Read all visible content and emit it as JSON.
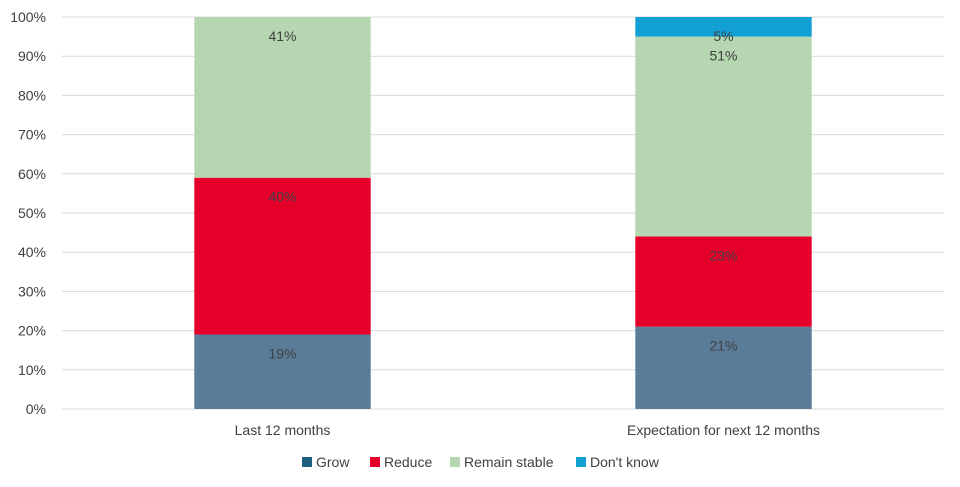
{
  "chart_data": {
    "type": "bar",
    "stacked": true,
    "categories": [
      "Last 12 months",
      "Expectation for next 12 months"
    ],
    "series": [
      {
        "name": "Grow",
        "color": "#5b7c99",
        "legend_color": "#1f5f82",
        "values": [
          19,
          21
        ],
        "labels": [
          "19%",
          "21%"
        ]
      },
      {
        "name": "Reduce",
        "color": "#e5002b",
        "legend_color": "#e5002b",
        "values": [
          40,
          23
        ],
        "labels": [
          "40%",
          "23%"
        ]
      },
      {
        "name": "Remain stable",
        "color": "#b5d6b0",
        "legend_color": "#b5d6b0",
        "values": [
          41,
          51
        ],
        "labels": [
          "41%",
          "51%"
        ]
      },
      {
        "name": "Don't know",
        "color": "#12a0d4",
        "legend_color": "#12a0d4",
        "values": [
          0,
          5
        ],
        "labels": [
          "",
          "5%"
        ]
      }
    ],
    "ylim": [
      0,
      100
    ],
    "yticks": [
      "0%",
      "10%",
      "20%",
      "30%",
      "40%",
      "50%",
      "60%",
      "70%",
      "80%",
      "90%",
      "100%"
    ],
    "grid": true,
    "legend_position": "bottom"
  }
}
